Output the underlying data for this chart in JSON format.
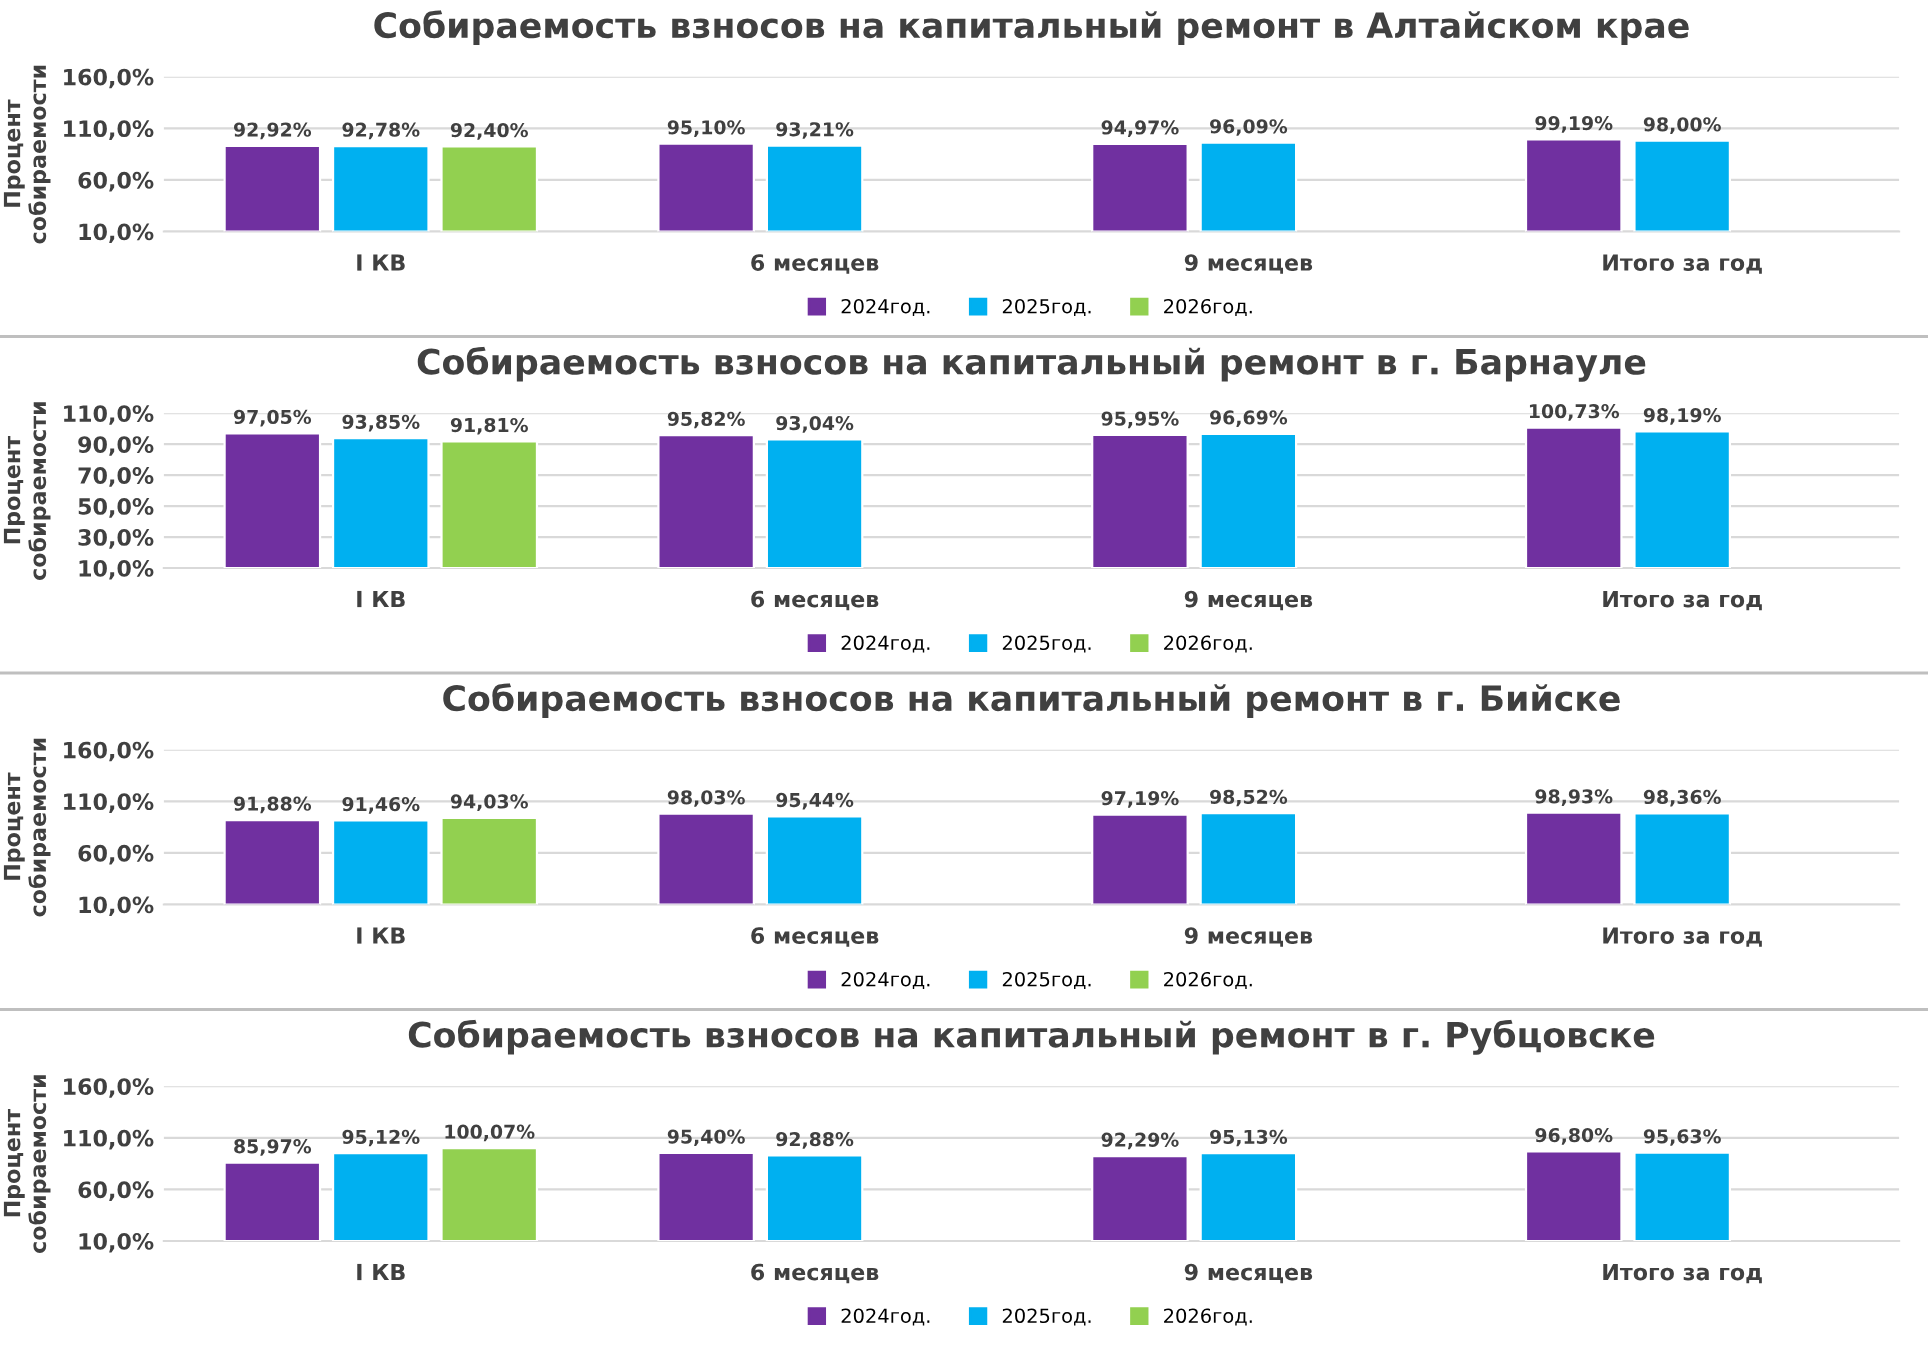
{
  "chart_data": [
    {
      "type": "bar",
      "title": "Собираемость взносов на капитальный ремонт в Алтайском крае",
      "ylabel": "Процент\nсобираемости",
      "categories": [
        "I КВ",
        "6 месяцев",
        "9 месяцев",
        "Итого за год"
      ],
      "series": [
        {
          "name": "2024год.",
          "color": "#7030a0",
          "values": [
            92.92,
            95.1,
            94.97,
            99.19
          ],
          "value_labels": [
            "92,92%",
            "95,10%",
            "94,97%",
            "99,19%"
          ]
        },
        {
          "name": "2025год.",
          "color": "#00b0f0",
          "values": [
            92.78,
            93.21,
            96.09,
            98.0
          ],
          "value_labels": [
            "92,78%",
            "93,21%",
            "96,09%",
            "98,00%"
          ]
        },
        {
          "name": "2026год.",
          "color": "#92d050",
          "values": [
            92.4,
            null,
            null,
            null
          ],
          "value_labels": [
            "92,40%",
            null,
            null,
            null
          ]
        }
      ],
      "ylim": [
        10,
        160
      ],
      "yticks": [
        {
          "value": 10,
          "label": "10,0%"
        },
        {
          "value": 60,
          "label": "60,0%"
        },
        {
          "value": 110,
          "label": "110,0%"
        },
        {
          "value": 160,
          "label": "160,0%"
        }
      ],
      "grid": "y",
      "legend": "bottom"
    },
    {
      "type": "bar",
      "title": "Собираемость взносов на капитальный ремонт в г. Барнауле",
      "ylabel": "Процент\nсобираемости",
      "categories": [
        "I КВ",
        "6 месяцев",
        "9 месяцев",
        "Итого за год"
      ],
      "series": [
        {
          "name": "2024год.",
          "color": "#7030a0",
          "values": [
            97.05,
            95.82,
            95.95,
            100.73
          ],
          "value_labels": [
            "97,05%",
            "95,82%",
            "95,95%",
            "100,73%"
          ]
        },
        {
          "name": "2025год.",
          "color": "#00b0f0",
          "values": [
            93.85,
            93.04,
            96.69,
            98.19
          ],
          "value_labels": [
            "93,85%",
            "93,04%",
            "96,69%",
            "98,19%"
          ]
        },
        {
          "name": "2026год.",
          "color": "#92d050",
          "values": [
            91.81,
            null,
            null,
            null
          ],
          "value_labels": [
            "91,81%",
            null,
            null,
            null
          ]
        }
      ],
      "ylim": [
        10,
        110
      ],
      "yticks": [
        {
          "value": 10,
          "label": "10,0%"
        },
        {
          "value": 30,
          "label": "30,0%"
        },
        {
          "value": 50,
          "label": "50,0%"
        },
        {
          "value": 70,
          "label": "70,0%"
        },
        {
          "value": 90,
          "label": "90,0%"
        },
        {
          "value": 110,
          "label": "110,0%"
        }
      ],
      "grid": "y",
      "legend": "bottom"
    },
    {
      "type": "bar",
      "title": "Собираемость взносов на капитальный ремонт в г. Бийске",
      "ylabel": "Процент\nсобираемости",
      "categories": [
        "I КВ",
        "6 месяцев",
        "9 месяцев",
        "Итого за год"
      ],
      "series": [
        {
          "name": "2024год.",
          "color": "#7030a0",
          "values": [
            91.88,
            98.03,
            97.19,
            98.93
          ],
          "value_labels": [
            "91,88%",
            "98,03%",
            "97,19%",
            "98,93%"
          ]
        },
        {
          "name": "2025год.",
          "color": "#00b0f0",
          "values": [
            91.46,
            95.44,
            98.52,
            98.36
          ],
          "value_labels": [
            "91,46%",
            "95,44%",
            "98,52%",
            "98,36%"
          ]
        },
        {
          "name": "2026год.",
          "color": "#92d050",
          "values": [
            94.03,
            null,
            null,
            null
          ],
          "value_labels": [
            "94,03%",
            null,
            null,
            null
          ]
        }
      ],
      "ylim": [
        10,
        160
      ],
      "yticks": [
        {
          "value": 10,
          "label": "10,0%"
        },
        {
          "value": 60,
          "label": "60,0%"
        },
        {
          "value": 110,
          "label": "110,0%"
        },
        {
          "value": 160,
          "label": "160,0%"
        }
      ],
      "grid": "y",
      "legend": "bottom"
    },
    {
      "type": "bar",
      "title": "Собираемость взносов на капитальный ремонт в г. Рубцовске",
      "ylabel": "Процент\nсобираемости",
      "categories": [
        "I КВ",
        "6 месяцев",
        "9 месяцев",
        "Итого за год"
      ],
      "series": [
        {
          "name": "2024год.",
          "color": "#7030a0",
          "values": [
            85.97,
            95.4,
            92.29,
            96.8
          ],
          "value_labels": [
            "85,97%",
            "95,40%",
            "92,29%",
            "96,80%"
          ]
        },
        {
          "name": "2025год.",
          "color": "#00b0f0",
          "values": [
            95.12,
            92.88,
            95.13,
            95.63
          ],
          "value_labels": [
            "95,12%",
            "92,88%",
            "95,13%",
            "95,63%"
          ]
        },
        {
          "name": "2026год.",
          "color": "#92d050",
          "values": [
            100.07,
            null,
            null,
            null
          ],
          "value_labels": [
            "100,07%",
            null,
            null,
            null
          ]
        }
      ],
      "ylim": [
        10,
        160
      ],
      "yticks": [
        {
          "value": 10,
          "label": "10,0%"
        },
        {
          "value": 60,
          "label": "60,0%"
        },
        {
          "value": 110,
          "label": "110,0%"
        },
        {
          "value": 160,
          "label": "160,0%"
        }
      ],
      "grid": "y",
      "legend": "bottom"
    }
  ]
}
